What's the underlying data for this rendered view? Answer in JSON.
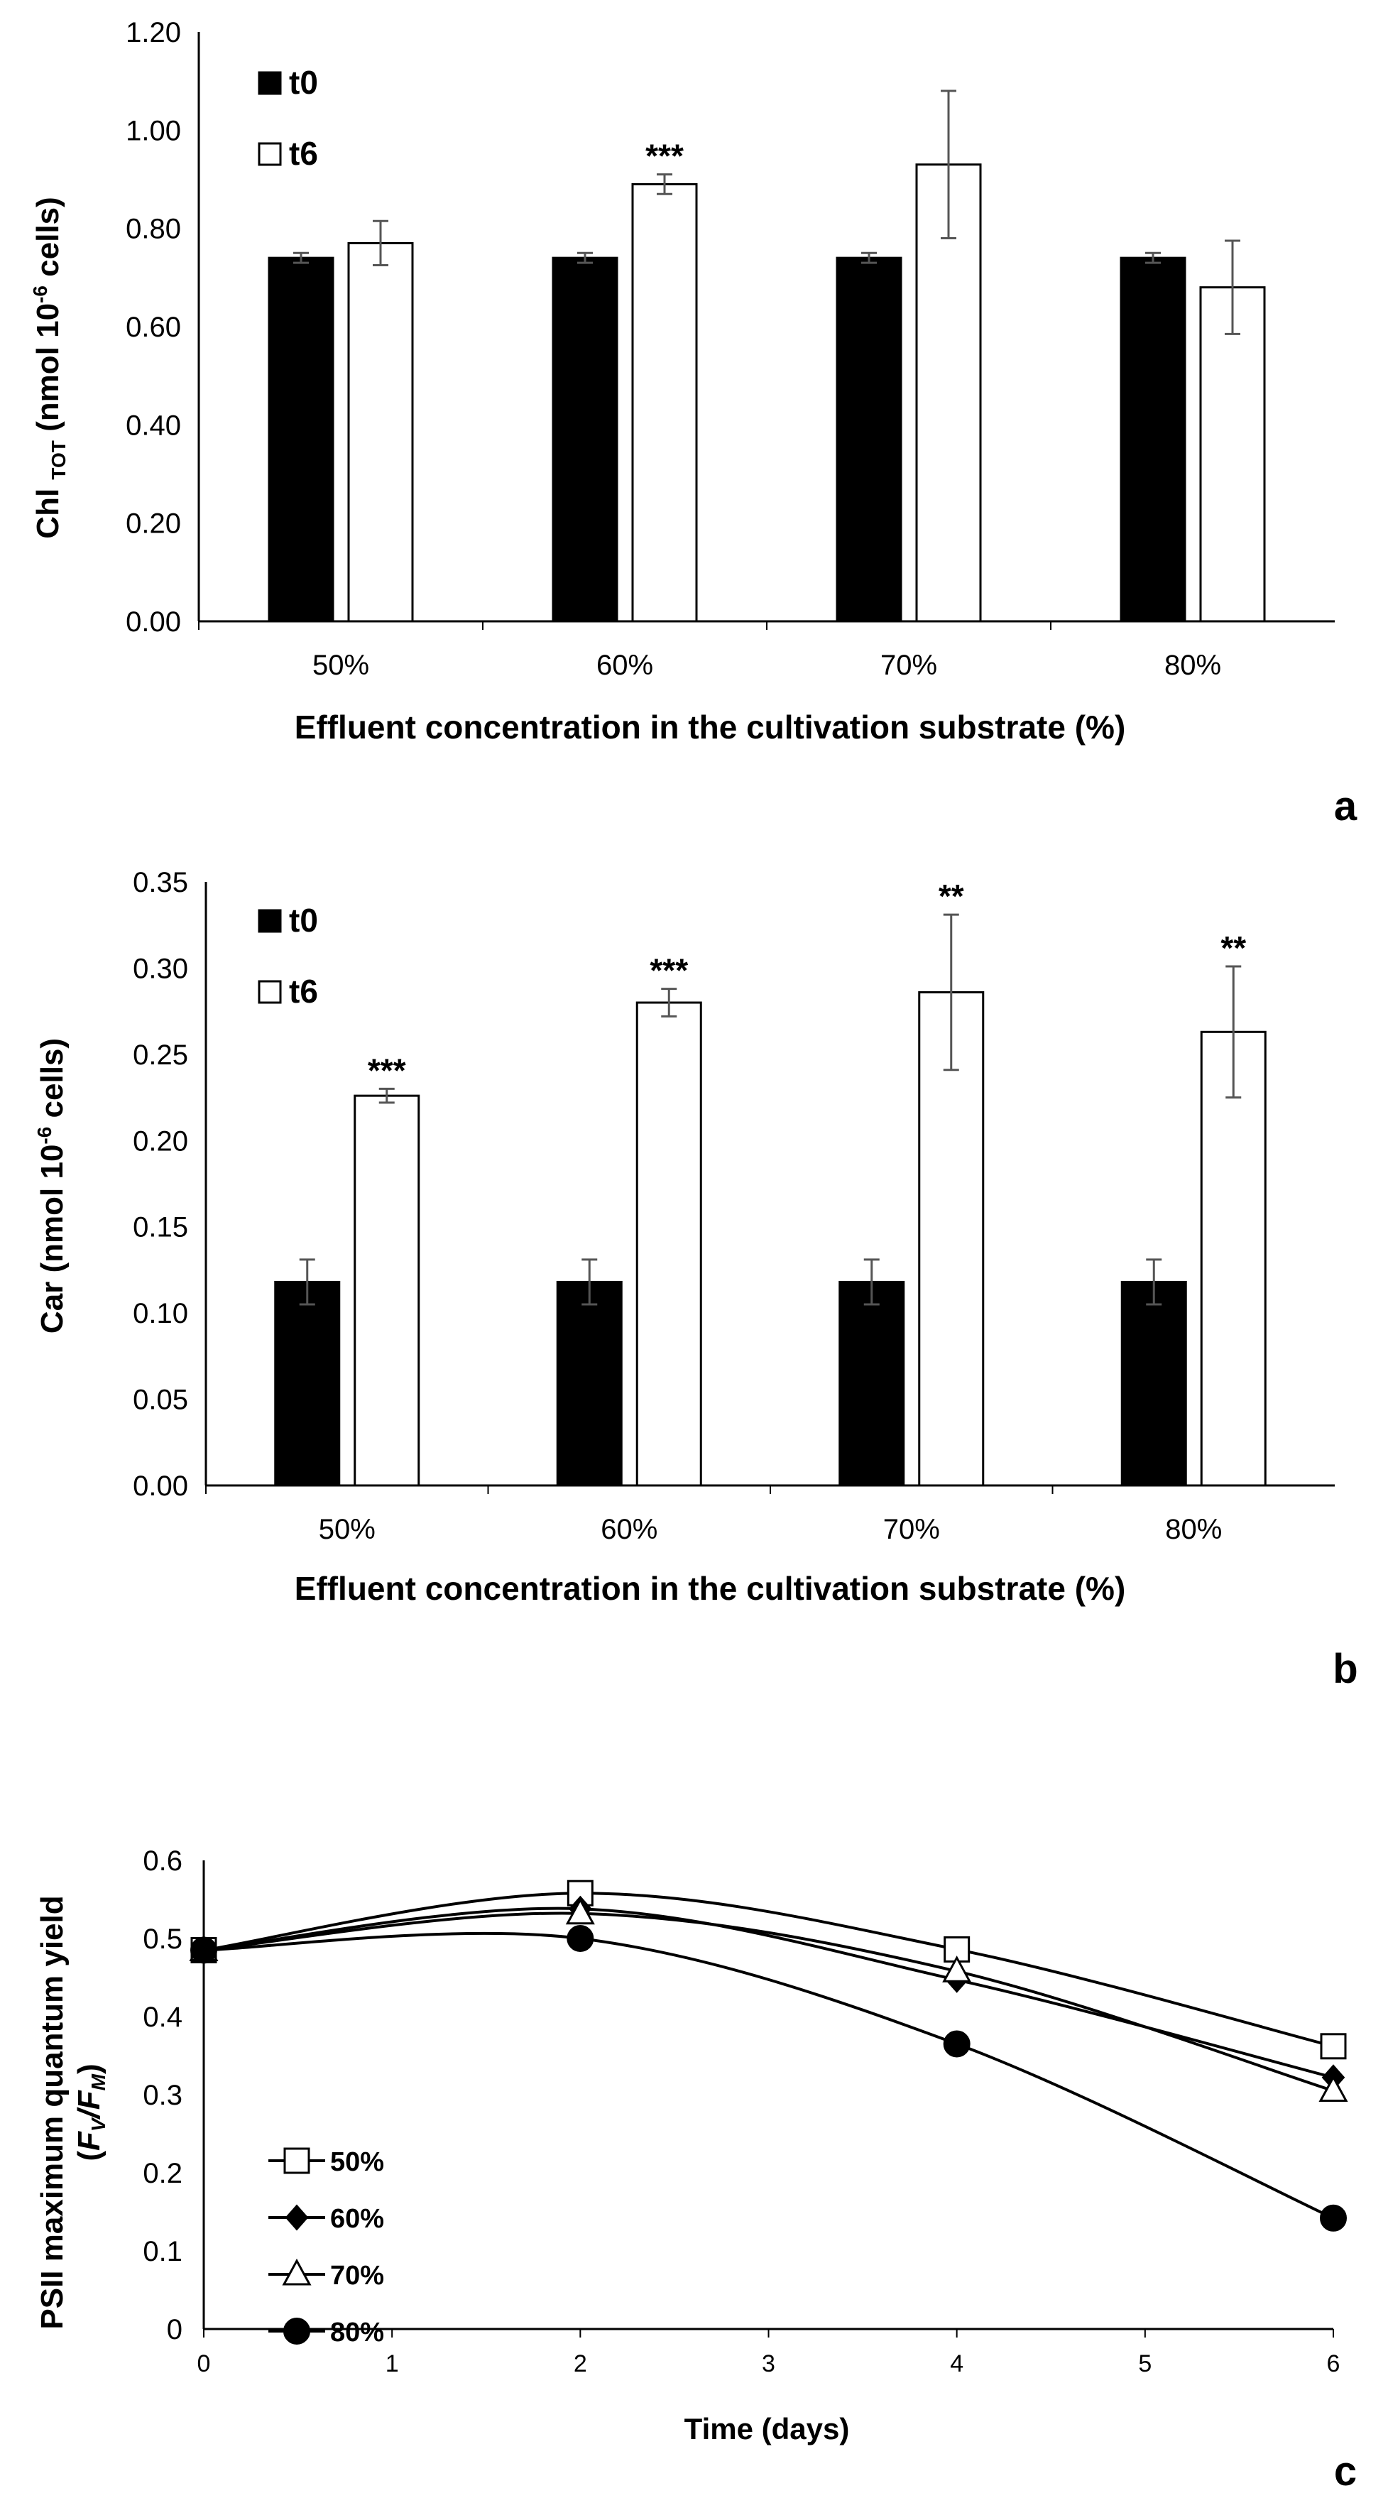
{
  "chart_data": [
    {
      "type": "bar",
      "panel_label": "a",
      "title": "",
      "xlabel": "Effluent concentration in the cultivation substrate (%)",
      "ylabel_main": "Chl",
      "ylabel_sub": "TOT",
      "ylabel_unit": "(nmol 10",
      "ylabel_exp": "-6",
      "ylabel_tail": " cells)",
      "categories": [
        "50%",
        "60%",
        "70%",
        "80%"
      ],
      "ylim": [
        0,
        1.2
      ],
      "yticks": [
        "0.00",
        "0.20",
        "0.40",
        "0.60",
        "0.80",
        "1.00",
        "1.20"
      ],
      "legend_position": "top-left",
      "series": [
        {
          "name": "t0",
          "color": "#000000",
          "values": [
            0.74,
            0.74,
            0.74,
            0.74
          ],
          "errors": [
            0.01,
            0.01,
            0.01,
            0.01
          ]
        },
        {
          "name": "t6",
          "color": "#ffffff",
          "values": [
            0.77,
            0.89,
            0.93,
            0.68
          ],
          "errors": [
            0.045,
            0.02,
            0.15,
            0.095
          ]
        }
      ],
      "annotations": [
        "",
        "***",
        "",
        ""
      ]
    },
    {
      "type": "bar",
      "panel_label": "b",
      "title": "",
      "xlabel": "Effluent concentration in the cultivation substrate (%)",
      "ylabel_main": "Car (nmol 10",
      "ylabel_exp": "-6",
      "ylabel_tail": "cells)",
      "categories": [
        "50%",
        "60%",
        "70%",
        "80%"
      ],
      "ylim": [
        0,
        0.35
      ],
      "yticks": [
        "0.00",
        "0.05",
        "0.10",
        "0.15",
        "0.20",
        "0.25",
        "0.30",
        "0.35"
      ],
      "legend_position": "top-left",
      "series": [
        {
          "name": "t0",
          "color": "#000000",
          "values": [
            0.118,
            0.118,
            0.118,
            0.118
          ],
          "errors": [
            0.013,
            0.013,
            0.013,
            0.013
          ]
        },
        {
          "name": "t6",
          "color": "#ffffff",
          "values": [
            0.226,
            0.28,
            0.286,
            0.263
          ],
          "errors": [
            0.004,
            0.008,
            0.045,
            0.038
          ]
        }
      ],
      "annotations": [
        "***",
        "***",
        "**",
        "**"
      ]
    },
    {
      "type": "line",
      "panel_label": "c",
      "title": "",
      "xlabel": "Time (days)",
      "ylabel_line1": "PSII maximum quantum yield",
      "ylabel_line2_open": "(",
      "ylabel_fv": "F",
      "ylabel_fv_sub": "V",
      "ylabel_slash": "/",
      "ylabel_fm": "F",
      "ylabel_fm_sub": "M",
      "ylabel_close": ")",
      "x": [
        0,
        2,
        4,
        6
      ],
      "xlim": [
        0,
        6
      ],
      "ylim": [
        0,
        0.6
      ],
      "xticks": [
        "0",
        "1",
        "2",
        "3",
        "4",
        "5",
        "6"
      ],
      "yticks": [
        "0",
        "0.1",
        "0.2",
        "0.3",
        "0.4",
        "0.5",
        "0.6"
      ],
      "legend_position": "bottom-left",
      "series": [
        {
          "name": "50%",
          "marker": "square-open",
          "values": [
            0.485,
            0.558,
            0.486,
            0.362
          ]
        },
        {
          "name": "60%",
          "marker": "diamond-filled",
          "values": [
            0.485,
            0.538,
            0.447,
            0.322
          ]
        },
        {
          "name": "70%",
          "marker": "triangle-open",
          "values": [
            0.485,
            0.532,
            0.458,
            0.305
          ]
        },
        {
          "name": "80%",
          "marker": "circle-filled",
          "values": [
            0.485,
            0.5,
            0.365,
            0.142
          ]
        }
      ]
    }
  ]
}
